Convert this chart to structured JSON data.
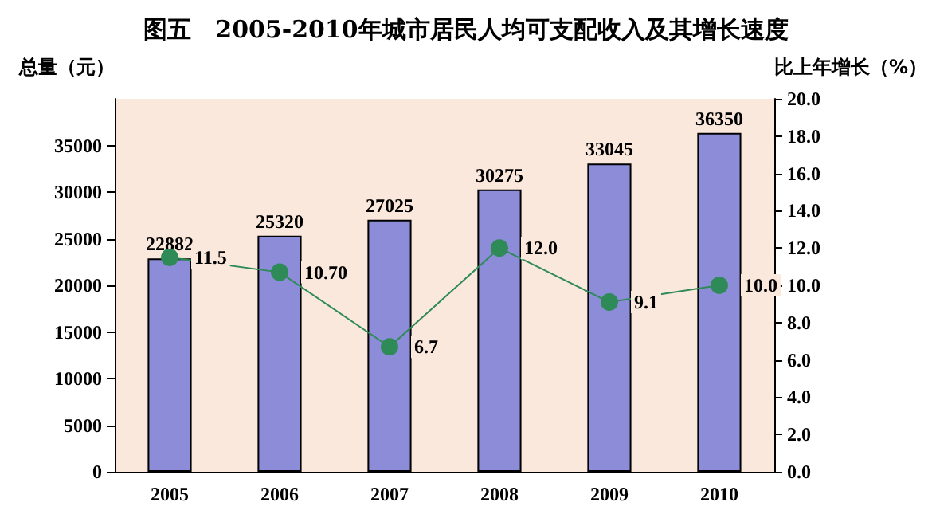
{
  "chart_data": {
    "type": "bar",
    "title": "图五　2005-2010年城市居民人均可支配收入及其增长速度",
    "ylabel": "总量（元）",
    "y2label": "比上年增长（%）",
    "categories": [
      "2005",
      "2006",
      "2007",
      "2008",
      "2009",
      "2010"
    ],
    "series": [
      {
        "color": "#8c8cd8",
        "values": [
          22882,
          25320,
          27025,
          30275,
          33045,
          36350
        ],
        "value_labels": [
          "22882",
          "25320",
          "27025",
          "30275",
          "33045",
          "36350"
        ]
      },
      {
        "type": "line",
        "axis": "y2",
        "color": "#2e8b57",
        "marker": "circle",
        "values": [
          11.5,
          10.7,
          6.7,
          12.0,
          9.1,
          10.0
        ],
        "value_labels": [
          "11.5",
          "10.70",
          "6.7",
          "12.0",
          "9.1",
          "10.0"
        ]
      }
    ],
    "ylim": [
      0,
      40000
    ],
    "yticks": [
      0,
      5000,
      10000,
      15000,
      20000,
      25000,
      30000,
      35000
    ],
    "y2lim": [
      0,
      20
    ],
    "y2ticks": [
      {
        "value": 0,
        "label": "0.0"
      },
      {
        "value": 2,
        "label": "2.0"
      },
      {
        "value": 4,
        "label": "4.0"
      },
      {
        "value": 6,
        "label": "6.0"
      },
      {
        "value": 8,
        "label": "8.0"
      },
      {
        "value": 10,
        "label": "10.0"
      },
      {
        "value": 12,
        "label": "12.0"
      },
      {
        "value": 14,
        "label": "14.0"
      },
      {
        "value": 16,
        "label": "16.0"
      },
      {
        "value": 18,
        "label": "18.0"
      },
      {
        "value": 20,
        "label": "20.0"
      }
    ],
    "grid": false
  }
}
